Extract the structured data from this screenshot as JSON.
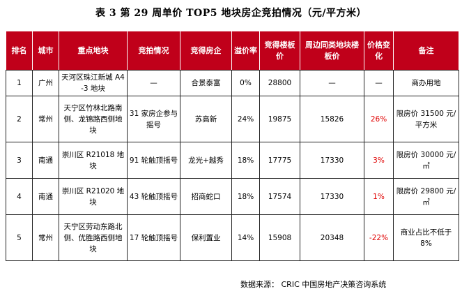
{
  "title": "表 3   第 29 周单价 TOP5 地块房企竞拍情况（元/平方米）",
  "headers": [
    "排名",
    "城市",
    "重点地块",
    "竞拍情况",
    "竞得房企",
    "溢价率",
    "竞得楼板价",
    "周边同类地块楼板价",
    "价格变化",
    "备注"
  ],
  "rows": [
    {
      "rank": "1",
      "city": "广州",
      "plot": "天河区珠江新城 A4-3 地块",
      "bidding": "—",
      "winner": "合景泰富",
      "premium": "0%",
      "price": "28800",
      "nearby": "—",
      "change": "—",
      "note": "商办用地"
    },
    {
      "rank": "2",
      "city": "常州",
      "plot": "天宁区竹林北路南侧、龙锦路西侧地块",
      "bidding": "31 家房企参与摇号",
      "winner": "苏高新",
      "premium": "24%",
      "price": "19875",
      "nearby": "15826",
      "change": "26%",
      "note": "限房价 31500 元/平方米"
    },
    {
      "rank": "3",
      "city": "南通",
      "plot": "崇川区 R21018 地块",
      "bidding": "91 轮触顶摇号",
      "winner": "龙光+越秀",
      "premium": "18%",
      "price": "17775",
      "nearby": "17330",
      "change": "3%",
      "note": "限房价 30000 元/㎡"
    },
    {
      "rank": "4",
      "city": "南通",
      "plot": "崇川区 R21020 地块",
      "bidding": "43 轮触顶摇号",
      "winner": "招商蛇口",
      "premium": "18%",
      "price": "17574",
      "nearby": "17330",
      "change": "1%",
      "note": "限房价 29800 元/㎡"
    },
    {
      "rank": "5",
      "city": "常州",
      "plot": "天宁区劳动东路北侧、优胜路西侧地块",
      "bidding": "17 轮触顶摇号",
      "winner": "保利置业",
      "premium": "14%",
      "price": "15908",
      "nearby": "20348",
      "change": "-22%",
      "note": "商业占比不低于 8%"
    }
  ],
  "source": "数据来源：  CRIC 中国房地产决策咨询系统",
  "colors": {
    "header_bg": "#c0001a",
    "header_text": "#ffffff",
    "change_text": "#e00000"
  }
}
